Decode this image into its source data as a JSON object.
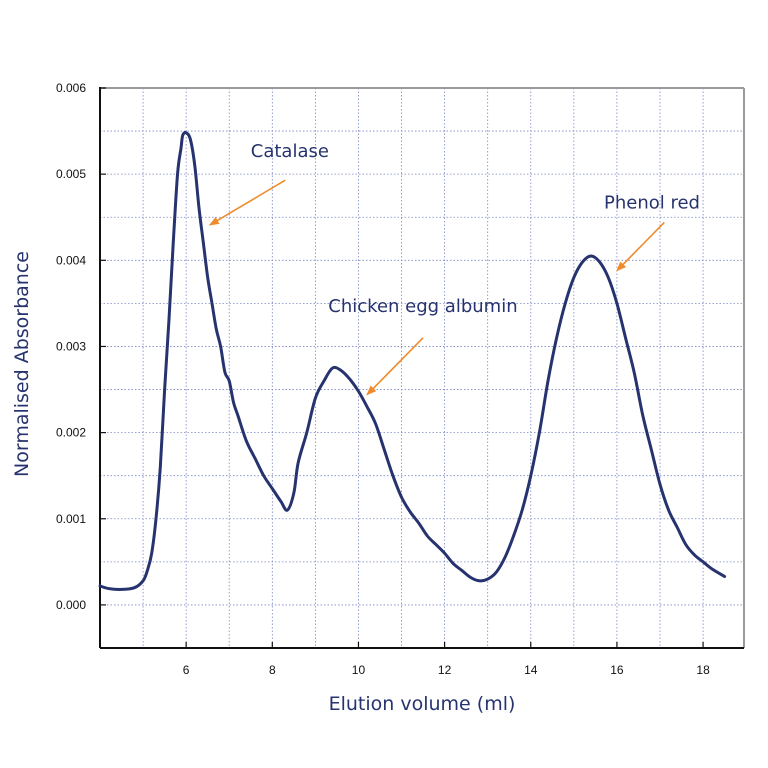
{
  "chart_data": {
    "type": "line",
    "title": "",
    "xlabel": "Elution volume (ml)",
    "ylabel": "Normalised Absorbance",
    "xlim": [
      4,
      18.5
    ],
    "ylim": [
      -0.0005,
      0.006
    ],
    "grid": true,
    "x_ticks": [
      "6",
      "8",
      "10",
      "12",
      "14",
      "16",
      "18"
    ],
    "y_ticks": [
      "0.000",
      "0.001",
      "0.002",
      "0.003",
      "0.004",
      "0.005",
      "0.006"
    ],
    "series": [
      {
        "points": [
          [
            4.0,
            0.00022
          ],
          [
            4.2,
            0.00019
          ],
          [
            4.5,
            0.00018
          ],
          [
            4.8,
            0.0002
          ],
          [
            5.0,
            0.00028
          ],
          [
            5.1,
            0.0004
          ],
          [
            5.2,
            0.0006
          ],
          [
            5.3,
            0.001
          ],
          [
            5.4,
            0.0016
          ],
          [
            5.5,
            0.0025
          ],
          [
            5.6,
            0.0033
          ],
          [
            5.7,
            0.0042
          ],
          [
            5.8,
            0.005
          ],
          [
            5.88,
            0.0053
          ],
          [
            5.92,
            0.00545
          ],
          [
            6.0,
            0.00548
          ],
          [
            6.1,
            0.0054
          ],
          [
            6.2,
            0.0051
          ],
          [
            6.3,
            0.0046
          ],
          [
            6.4,
            0.0042
          ],
          [
            6.5,
            0.0038
          ],
          [
            6.6,
            0.0035
          ],
          [
            6.7,
            0.0032
          ],
          [
            6.8,
            0.003
          ],
          [
            6.9,
            0.0027
          ],
          [
            7.0,
            0.0026
          ],
          [
            7.1,
            0.00235
          ],
          [
            7.2,
            0.0022
          ],
          [
            7.4,
            0.0019
          ],
          [
            7.6,
            0.0017
          ],
          [
            7.8,
            0.0015
          ],
          [
            8.0,
            0.00135
          ],
          [
            8.2,
            0.0012
          ],
          [
            8.35,
            0.0011
          ],
          [
            8.5,
            0.0013
          ],
          [
            8.6,
            0.00165
          ],
          [
            8.8,
            0.002
          ],
          [
            9.0,
            0.0024
          ],
          [
            9.2,
            0.0026
          ],
          [
            9.4,
            0.00275
          ],
          [
            9.6,
            0.00272
          ],
          [
            9.8,
            0.00262
          ],
          [
            10.0,
            0.00248
          ],
          [
            10.2,
            0.0023
          ],
          [
            10.4,
            0.0021
          ],
          [
            10.6,
            0.0018
          ],
          [
            10.8,
            0.0015
          ],
          [
            11.0,
            0.00125
          ],
          [
            11.2,
            0.00108
          ],
          [
            11.4,
            0.00095
          ],
          [
            11.6,
            0.0008
          ],
          [
            11.8,
            0.0007
          ],
          [
            12.0,
            0.0006
          ],
          [
            12.2,
            0.00048
          ],
          [
            12.4,
            0.0004
          ],
          [
            12.6,
            0.00032
          ],
          [
            12.8,
            0.00028
          ],
          [
            13.0,
            0.0003
          ],
          [
            13.2,
            0.00038
          ],
          [
            13.4,
            0.00055
          ],
          [
            13.6,
            0.0008
          ],
          [
            13.8,
            0.0011
          ],
          [
            14.0,
            0.0015
          ],
          [
            14.2,
            0.002
          ],
          [
            14.4,
            0.0026
          ],
          [
            14.6,
            0.0031
          ],
          [
            14.8,
            0.0035
          ],
          [
            15.0,
            0.0038
          ],
          [
            15.2,
            0.00398
          ],
          [
            15.4,
            0.00405
          ],
          [
            15.6,
            0.00398
          ],
          [
            15.8,
            0.0038
          ],
          [
            16.0,
            0.0035
          ],
          [
            16.2,
            0.0031
          ],
          [
            16.4,
            0.0027
          ],
          [
            16.6,
            0.0022
          ],
          [
            16.8,
            0.0018
          ],
          [
            17.0,
            0.0014
          ],
          [
            17.2,
            0.0011
          ],
          [
            17.4,
            0.0009
          ],
          [
            17.6,
            0.0007
          ],
          [
            17.8,
            0.00058
          ],
          [
            18.0,
            0.0005
          ],
          [
            18.2,
            0.00042
          ],
          [
            18.5,
            0.00033
          ]
        ],
        "color": "#27336e"
      }
    ],
    "annotations": [
      {
        "text": "Catalase",
        "text_x": 7.5,
        "text_y": 0.0052,
        "arrow_from": [
          8.3,
          0.00493
        ],
        "arrow_to": [
          6.55,
          0.00441
        ]
      },
      {
        "text": "Chicken egg albumin",
        "text_x": 9.3,
        "text_y": 0.0034,
        "arrow_from": [
          11.5,
          0.0031
        ],
        "arrow_to": [
          10.2,
          0.00244
        ]
      },
      {
        "text": "Phenol red",
        "text_x": 15.7,
        "text_y": 0.0046,
        "arrow_from": [
          17.1,
          0.00444
        ],
        "arrow_to": [
          16.0,
          0.00388
        ]
      }
    ]
  },
  "colors": {
    "line": "#27336e",
    "text": "#27336e",
    "arrow": "#f08b2c",
    "grid": "#7b86c6",
    "axes": "#111111",
    "frame": "#9a9a9a"
  }
}
